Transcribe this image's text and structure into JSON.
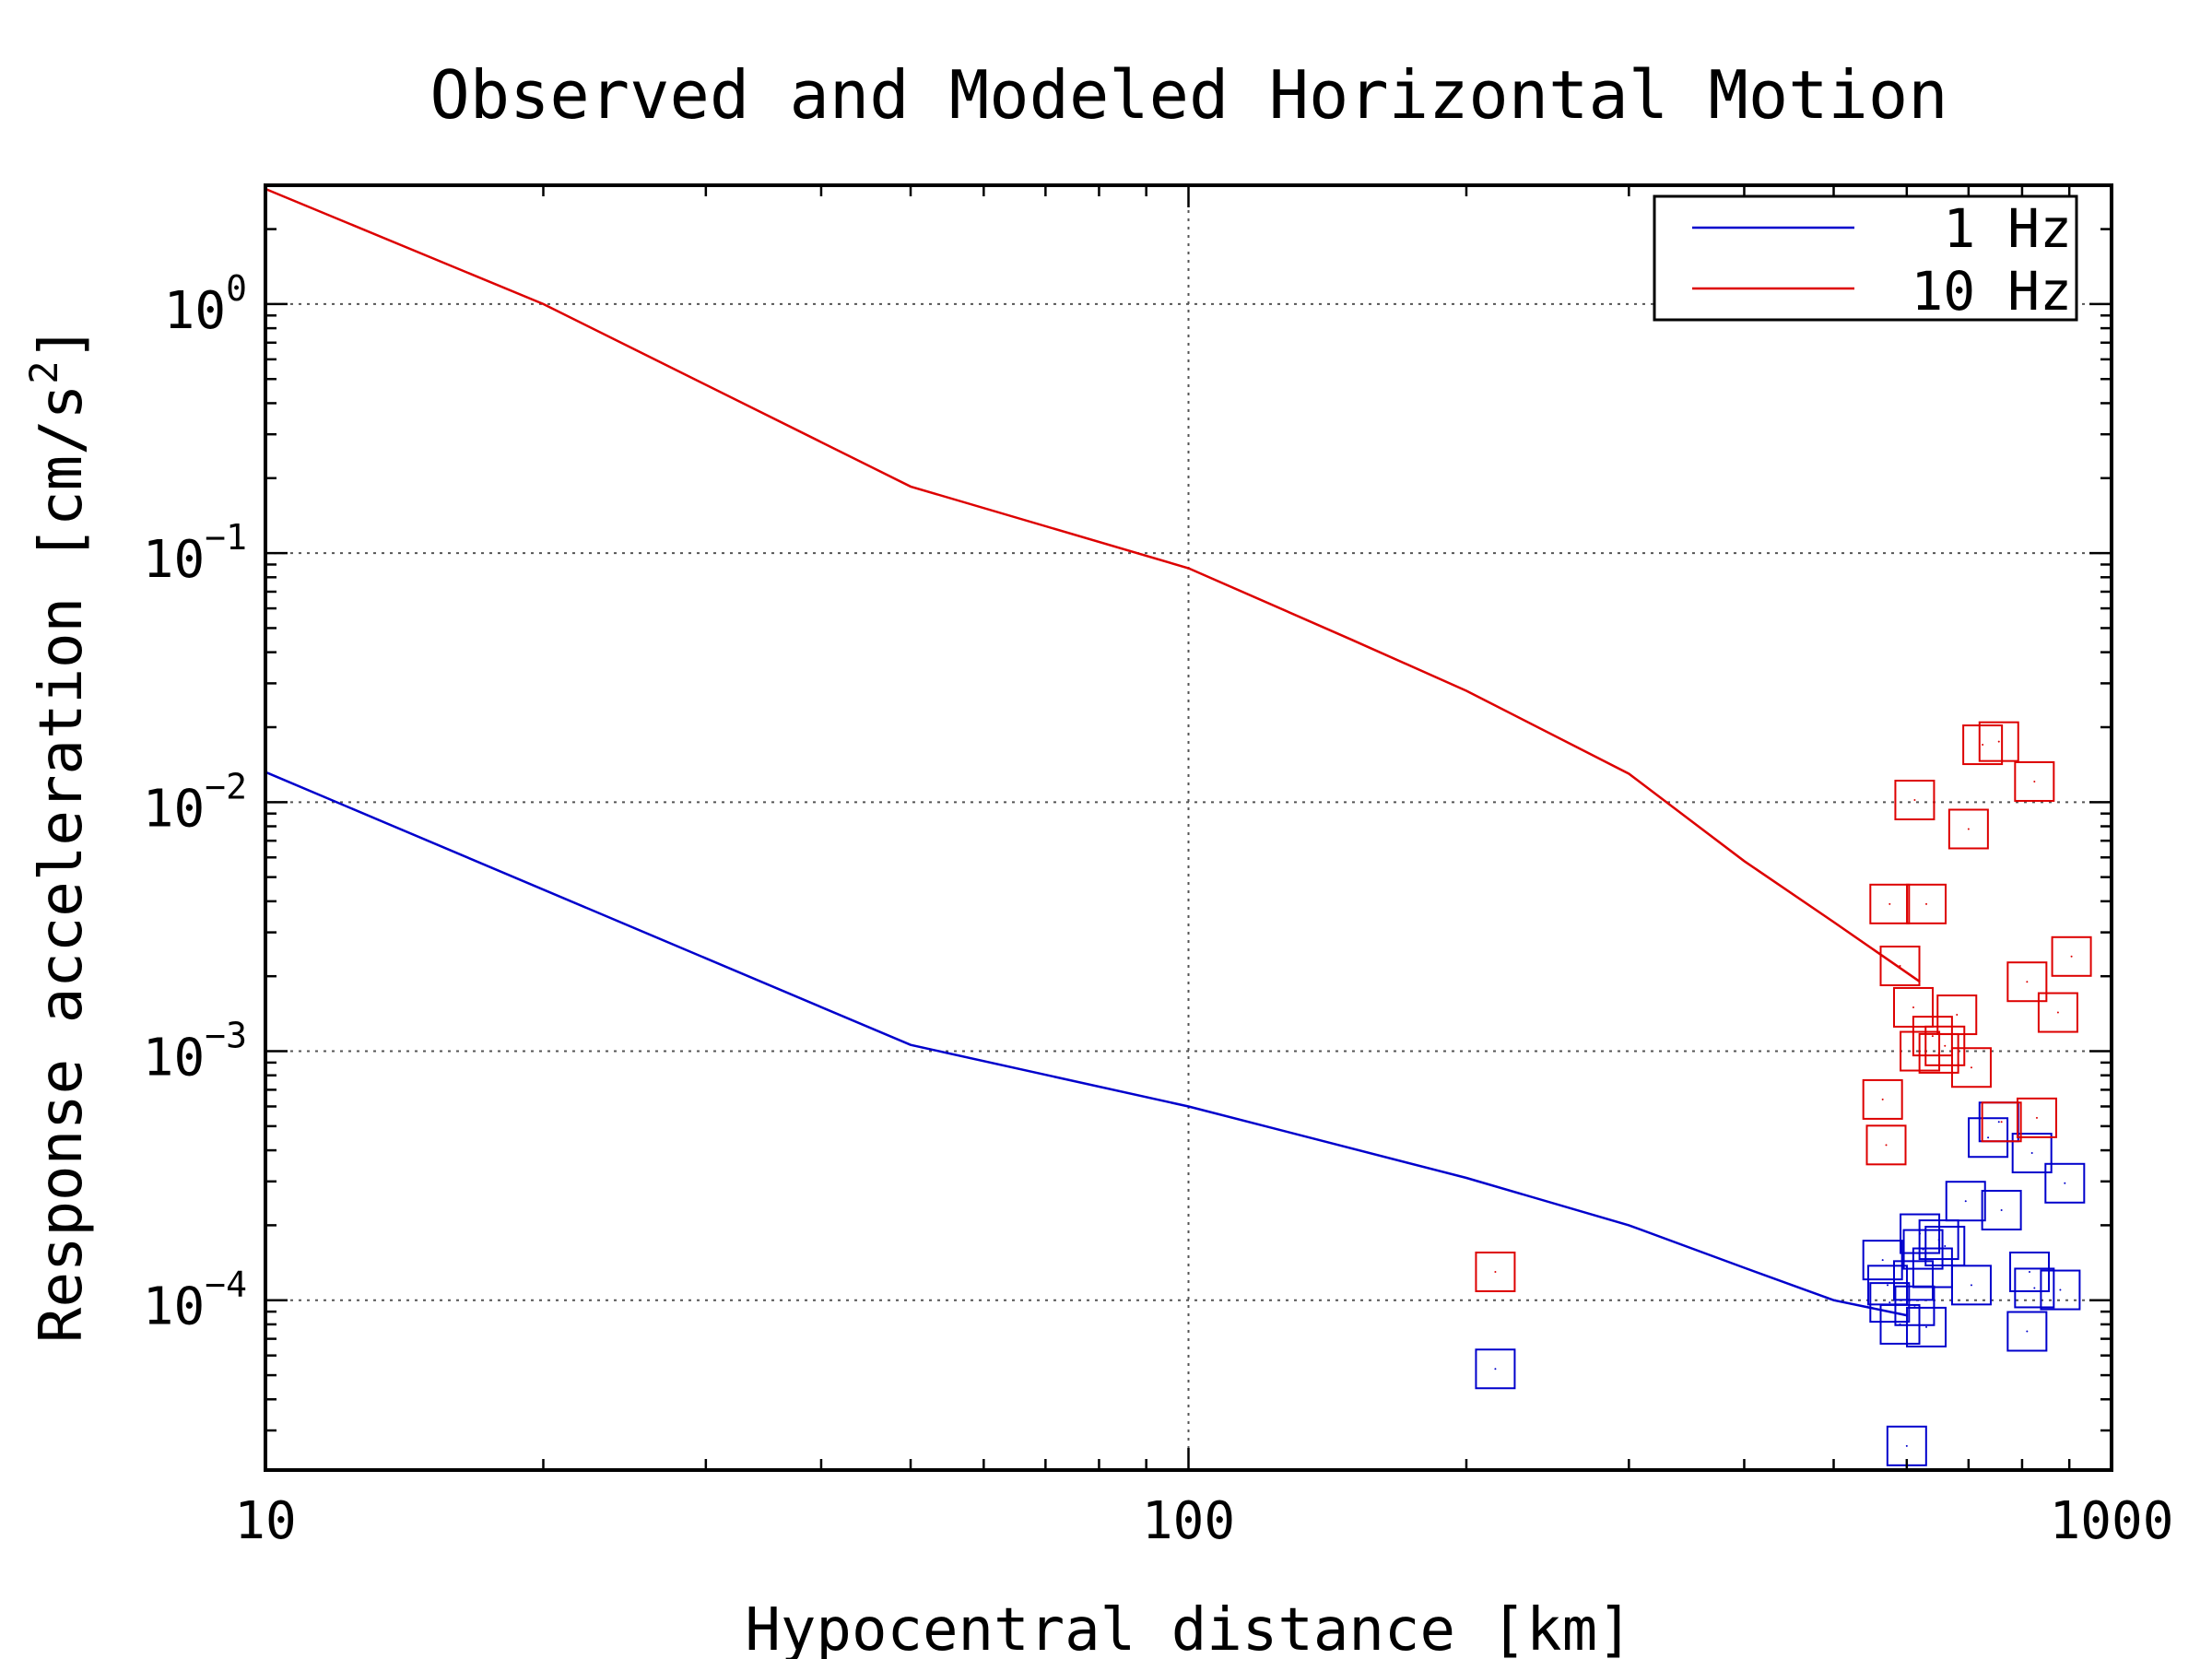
{
  "chart_data": {
    "type": "scatter",
    "title": "Observed and Modeled Horizontal Motion",
    "xlabel": "Hypocentral distance [km]",
    "ylabel": "Response acceleration [cm/s",
    "ylabel_sup": "2",
    "ylabel_close": "]",
    "xscale": "log",
    "yscale": "log",
    "xlim": [
      10,
      1000
    ],
    "ylim": [
      2.08e-05,
      3.0
    ],
    "grid": true,
    "legend_position": "top-right",
    "x_ticks": [
      {
        "value": 10,
        "label": "10"
      },
      {
        "value": 100,
        "label": "100"
      },
      {
        "value": 1000,
        "label": "1000"
      }
    ],
    "y_ticks": [
      {
        "value": 1,
        "base": "10",
        "exp": "0"
      },
      {
        "value": 0.1,
        "base": "10",
        "exp": "−1"
      },
      {
        "value": 0.01,
        "base": "10",
        "exp": "−2"
      },
      {
        "value": 0.001,
        "base": "10",
        "exp": "−3"
      },
      {
        "value": 0.0001,
        "base": "10",
        "exp": "−4"
      }
    ],
    "series": [
      {
        "name": "1 Hz",
        "color": "#0000cc",
        "line": {
          "x": [
            10,
            50,
            100,
            200,
            300,
            400,
            500,
            600
          ],
          "y": [
            0.0132,
            0.00106,
            0.0006,
            0.00031,
            0.0002,
            0.000135,
            0.0001,
            8.7e-05
          ]
        },
        "points": {
          "x": [
            215,
            565,
            572,
            575,
            590,
            610,
            612,
            620,
            625,
            630,
            640,
            650,
            660,
            695,
            705,
            735,
            755,
            760,
            810,
            815,
            820,
            825,
            880,
            890,
            600
          ],
          "y": [
            5.3e-05,
            0.000145,
            0.000115,
            9.8e-05,
            8e-05,
            0.00012,
            9.5e-05,
            0.000185,
            0.00016,
            7.8e-05,
            0.000135,
            0.000175,
            0.000165,
            0.00025,
            0.000115,
            0.00045,
            0.00052,
            0.00023,
            7.5e-05,
            0.00013,
            0.00039,
            0.000112,
            0.00011,
            0.000295,
            2.6e-05
          ]
        }
      },
      {
        "name": "10 Hz",
        "color": "#dd0000",
        "line": {
          "x": [
            10,
            20,
            50,
            100,
            150,
            200,
            300,
            400,
            500,
            620
          ],
          "y": [
            2.9,
            1.0,
            0.185,
            0.087,
            0.045,
            0.028,
            0.013,
            0.0058,
            0.0033,
            0.0019
          ]
        },
        "points": {
          "x": [
            215,
            565,
            570,
            575,
            590,
            610,
            612,
            620,
            630,
            640,
            650,
            660,
            680,
            700,
            705,
            725,
            755,
            760,
            810,
            825,
            830,
            875,
            905
          ],
          "y": [
            0.00013,
            0.00064,
            0.00042,
            0.0039,
            0.0022,
            0.0015,
            0.0102,
            0.001,
            0.0039,
            0.00115,
            0.00098,
            0.00105,
            0.0014,
            0.0078,
            0.00086,
            0.017,
            0.0175,
            0.00052,
            0.0019,
            0.0121,
            0.00054,
            0.00143,
            0.0024
          ]
        }
      }
    ]
  }
}
